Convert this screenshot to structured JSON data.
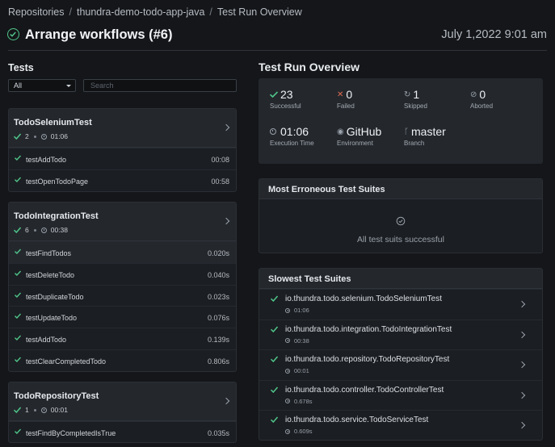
{
  "breadcrumb": [
    "Repositories",
    "thundra-demo-todo-app-java",
    "Test Run Overview"
  ],
  "header": {
    "title": "Arrange workflows (#6)",
    "date": "July 1,2022 9:01 am"
  },
  "left": {
    "title": "Tests",
    "filter_value": "All",
    "search_placeholder": "Search",
    "suites": [
      {
        "name": "TodoSeleniumTest",
        "count": "2",
        "duration": "01:06",
        "cases": [
          {
            "name": "testAddTodo",
            "duration": "00:08"
          },
          {
            "name": "testOpenTodoPage",
            "duration": "00:58"
          }
        ]
      },
      {
        "name": "TodoIntegrationTest",
        "count": "6",
        "duration": "00:38",
        "cases": [
          {
            "name": "testFindTodos",
            "duration": "0.020s"
          },
          {
            "name": "testDeleteTodo",
            "duration": "0.040s"
          },
          {
            "name": "testDuplicateTodo",
            "duration": "0.023s"
          },
          {
            "name": "testUpdateTodo",
            "duration": "0.076s"
          },
          {
            "name": "testAddTodo",
            "duration": "0.139s"
          },
          {
            "name": "testClearCompletedTodo",
            "duration": "0.806s"
          }
        ]
      },
      {
        "name": "TodoRepositoryTest",
        "count": "1",
        "duration": "00:01",
        "cases": [
          {
            "name": "testFindByCompletedIsTrue",
            "duration": "0.035s"
          }
        ]
      }
    ]
  },
  "overview": {
    "title": "Test Run Overview",
    "stats": [
      {
        "value": "23",
        "label": "Successful",
        "icon": "check-icon"
      },
      {
        "value": "0",
        "label": "Failed",
        "icon": "x-icon"
      },
      {
        "value": "1",
        "label": "Skipped",
        "icon": "skip-icon"
      },
      {
        "value": "0",
        "label": "Aborted",
        "icon": "aborted-icon"
      },
      {
        "value": "01:06",
        "label": "Execution Time",
        "icon": "clock-icon"
      },
      {
        "value": "GitHub",
        "label": "Environment",
        "icon": "github-icon"
      },
      {
        "value": "master",
        "label": "Branch",
        "icon": "branch-icon"
      }
    ]
  },
  "erroneous": {
    "title": "Most Erroneous Test Suites",
    "empty_text": "All test suits successful"
  },
  "slowest": {
    "title": "Slowest Test Suites",
    "rows": [
      {
        "name": "io.thundra.todo.selenium.TodoSeleniumTest",
        "duration": "01:06"
      },
      {
        "name": "io.thundra.todo.integration.TodoIntegrationTest",
        "duration": "00:38"
      },
      {
        "name": "io.thundra.todo.repository.TodoRepositoryTest",
        "duration": "00:01"
      },
      {
        "name": "io.thundra.todo.controller.TodoControllerTest",
        "duration": "0.678s"
      },
      {
        "name": "io.thundra.todo.service.TodoServiceTest",
        "duration": "0.609s"
      }
    ]
  },
  "colors": {
    "success": "#4fc58a",
    "failed": "#e06a50",
    "background": "#141619",
    "panel": "#24282d"
  }
}
